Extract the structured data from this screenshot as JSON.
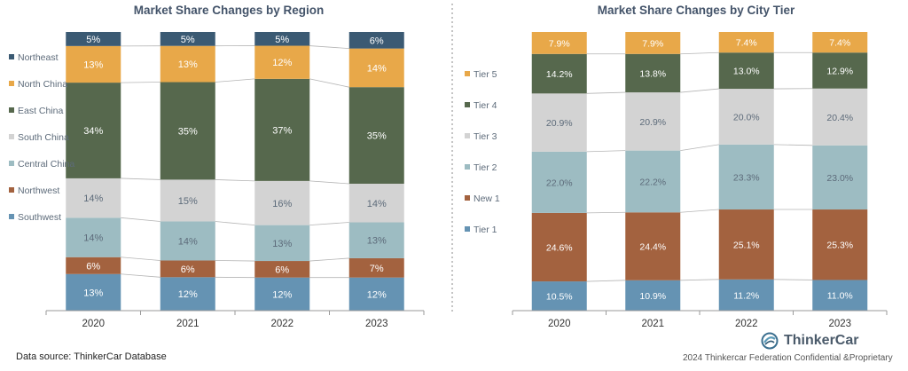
{
  "colors": {
    "Northeast": "#3b5a73",
    "North China": "#e8a849",
    "East China": "#56684d",
    "South China": "#d3d3d3",
    "Central China": "#9dbcc2",
    "Northwest": "#a3623f",
    "Southwest": "#6593b3",
    "Tier 5": "#e8a849",
    "Tier 4": "#56684d",
    "Tier 3": "#d3d3d3",
    "Tier 2": "#9dbcc2",
    "New 1": "#a3623f",
    "Tier 1": "#6593b3"
  },
  "chart_data": [
    {
      "type": "bar",
      "stacked": true,
      "title": "Market Share Changes by Region",
      "categories": [
        "2020",
        "2021",
        "2022",
        "2023"
      ],
      "ylim": [
        0,
        100
      ],
      "legend_position": "left",
      "series": [
        {
          "name": "Southwest",
          "values": [
            13,
            12,
            12,
            12
          ],
          "labels": [
            "13%",
            "12%",
            "12%",
            "12%"
          ]
        },
        {
          "name": "Northwest",
          "values": [
            6,
            6,
            6,
            7
          ],
          "labels": [
            "6%",
            "6%",
            "6%",
            "7%"
          ]
        },
        {
          "name": "Central China",
          "values": [
            14,
            14,
            13,
            13
          ],
          "labels": [
            "14%",
            "14%",
            "13%",
            "13%"
          ]
        },
        {
          "name": "South China",
          "values": [
            14,
            15,
            16,
            14
          ],
          "labels": [
            "14%",
            "15%",
            "16%",
            "14%"
          ]
        },
        {
          "name": "East China",
          "values": [
            34,
            35,
            37,
            35
          ],
          "labels": [
            "34%",
            "35%",
            "37%",
            "35%"
          ]
        },
        {
          "name": "North China",
          "values": [
            13,
            13,
            12,
            14
          ],
          "labels": [
            "13%",
            "13%",
            "12%",
            "14%"
          ]
        },
        {
          "name": "Northeast",
          "values": [
            5,
            5,
            5,
            6
          ],
          "labels": [
            "5%",
            "5%",
            "5%",
            "6%"
          ]
        }
      ]
    },
    {
      "type": "bar",
      "stacked": true,
      "title": "Market Share Changes by City Tier",
      "categories": [
        "2020",
        "2021",
        "2022",
        "2023"
      ],
      "ylim": [
        0,
        100
      ],
      "legend_position": "left",
      "series": [
        {
          "name": "Tier 1",
          "values": [
            10.5,
            10.9,
            11.2,
            11.0
          ],
          "labels": [
            "10.5%",
            "10.9%",
            "11.2%",
            "11.0%"
          ]
        },
        {
          "name": "New 1",
          "values": [
            24.6,
            24.4,
            25.1,
            25.3
          ],
          "labels": [
            "24.6%",
            "24.4%",
            "25.1%",
            "25.3%"
          ]
        },
        {
          "name": "Tier 2",
          "values": [
            22.0,
            22.2,
            23.3,
            23.0
          ],
          "labels": [
            "22.0%",
            "22.2%",
            "23.3%",
            "23.0%"
          ]
        },
        {
          "name": "Tier 3",
          "values": [
            20.9,
            20.9,
            20.0,
            20.4
          ],
          "labels": [
            "20.9%",
            "20.9%",
            "20.0%",
            "20.4%"
          ]
        },
        {
          "name": "Tier 4",
          "values": [
            14.2,
            13.8,
            13.0,
            12.9
          ],
          "labels": [
            "14.2%",
            "13.8%",
            "13.0%",
            "12.9%"
          ]
        },
        {
          "name": "Tier 5",
          "values": [
            7.9,
            7.9,
            7.4,
            7.4
          ],
          "labels": [
            "7.9%",
            "7.9%",
            "7.4%",
            "7.4%"
          ]
        }
      ]
    }
  ],
  "footer": {
    "source": "Data source: ThinkerCar Database",
    "brand_name": "ThinkerCar",
    "brand_tagline": "2024 Thinkercar Federation Confidential &Proprietary"
  }
}
